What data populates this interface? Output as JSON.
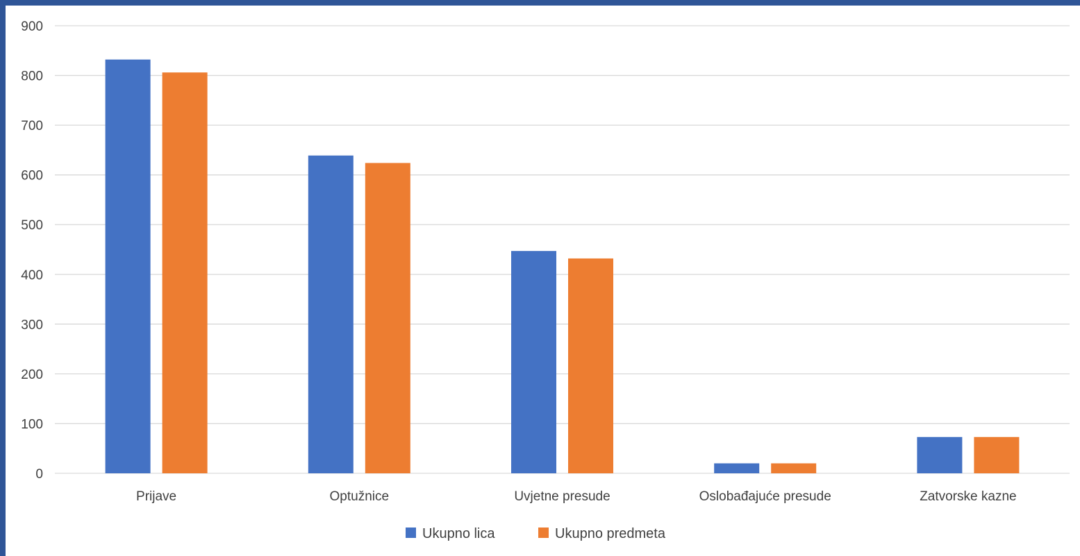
{
  "chart_data": {
    "type": "bar",
    "categories": [
      "Prijave",
      "Optužnice",
      "Uvjetne presude",
      "Oslobađajuće presude",
      "Zatvorske kazne"
    ],
    "series": [
      {
        "name": "Ukupno lica",
        "values": [
          832,
          639,
          447,
          20,
          73
        ],
        "color": "#4472C4"
      },
      {
        "name": "Ukupno predmeta",
        "values": [
          806,
          624,
          432,
          20,
          73
        ],
        "color": "#ED7D31"
      }
    ],
    "ylim": [
      0,
      900
    ],
    "yticks": [
      "0",
      "100",
      "200",
      "300",
      "400",
      "500",
      "600",
      "700",
      "800",
      "900"
    ],
    "grid": true,
    "legend": "bottom-center",
    "gridline_color": "#D9D9D9"
  }
}
